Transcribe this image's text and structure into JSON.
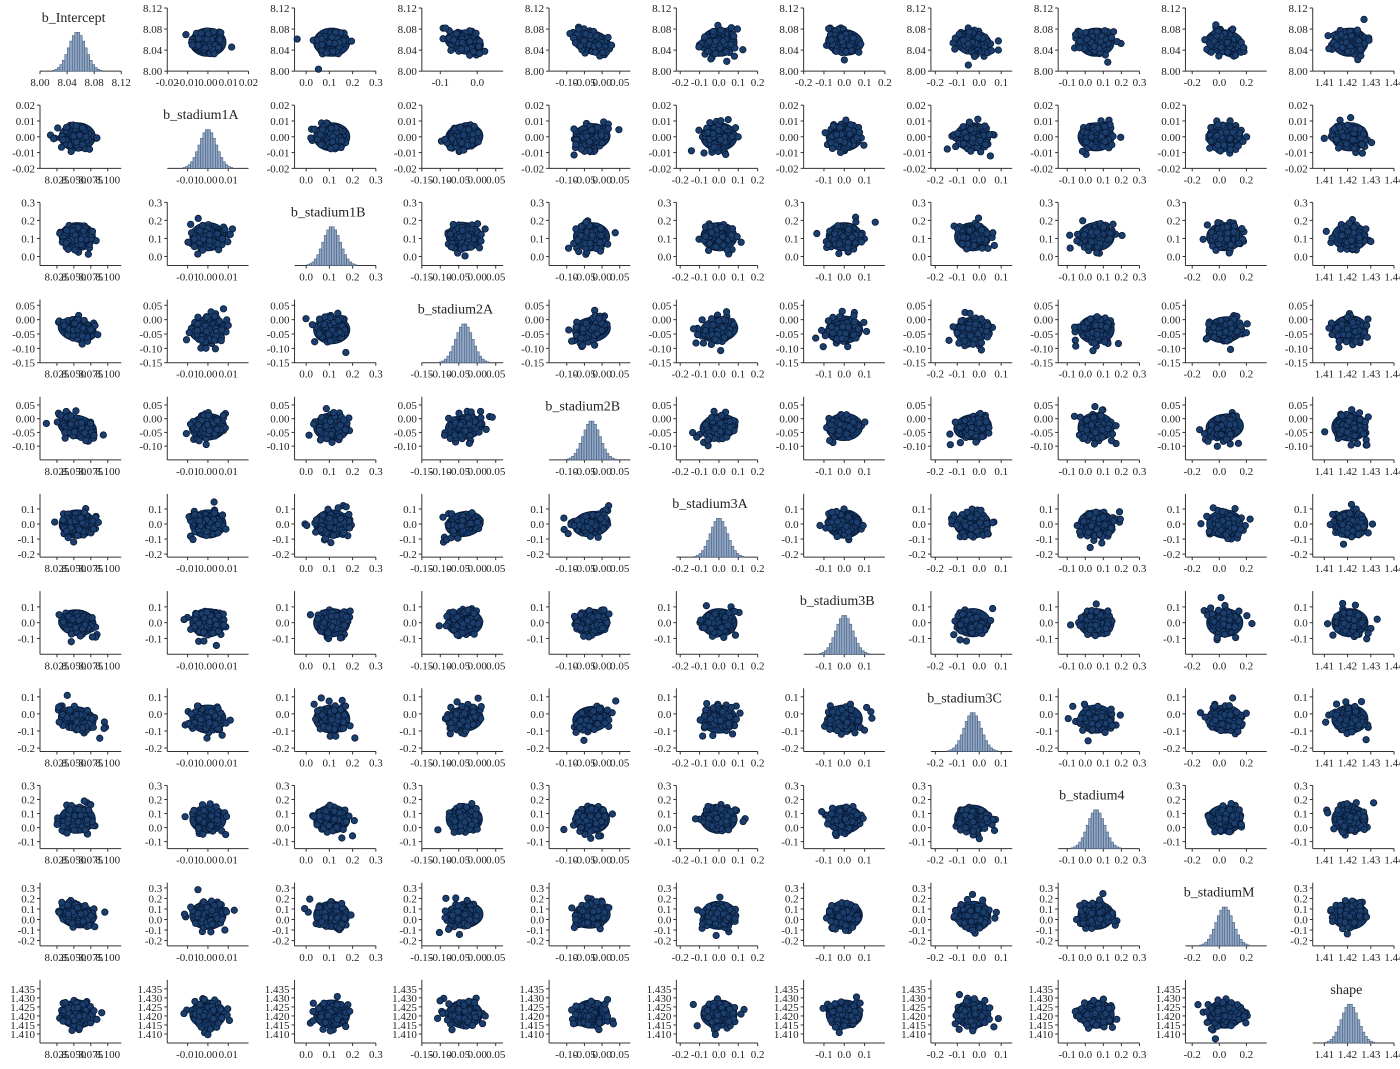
{
  "chart_data": {
    "type": "scatter",
    "title": "",
    "layout": "pairs-matrix",
    "grid": false,
    "legend": "none",
    "colors": {
      "points": "#143866",
      "point_edge": "#0a1f3f",
      "histogram": "#8fa6c4",
      "title": "#0b2450"
    },
    "variables": [
      {
        "name": "b_Intercept",
        "range": [
          8.0,
          8.12
        ],
        "center": 8.055,
        "x_ticks": [
          "8.00",
          "8.04",
          "8.08",
          "8.12"
        ],
        "x_ticks_alt": [
          "8.025",
          "8.050",
          "8.075",
          "8.100"
        ],
        "y_ticks": [
          "8.12",
          "8.08",
          "8.04",
          "8.00"
        ]
      },
      {
        "name": "b_stadium1A",
        "range": [
          -0.02,
          0.02
        ],
        "center": 0.0,
        "x_ticks": [
          "-0.02",
          "-0.01",
          "0.00",
          "0.01",
          "0.02"
        ],
        "x_ticks_alt": [
          "-0.01",
          "0.00",
          "0.01"
        ],
        "y_ticks": [
          "0.02",
          "0.01",
          "0.00",
          "-0.01",
          "-0.02"
        ]
      },
      {
        "name": "b_stadium1B",
        "range": [
          -0.05,
          0.3
        ],
        "center": 0.11,
        "x_ticks": [
          "0.0",
          "0.1",
          "0.2",
          "0.3"
        ],
        "y_ticks": [
          "0.3",
          "0.2",
          "0.1",
          "0.0"
        ]
      },
      {
        "name": "b_stadium2A",
        "range": [
          -0.15,
          0.07
        ],
        "center": -0.035,
        "x_ticks": [
          "-0.1",
          "0.0"
        ],
        "x_ticks_alt": [
          "-0.15",
          "-0.10",
          "-0.05",
          "0.00",
          "0.05"
        ],
        "y_ticks": [
          "0.05",
          "0.00",
          "-0.05",
          "-0.10",
          "-0.15"
        ]
      },
      {
        "name": "b_stadium2B",
        "range": [
          -0.15,
          0.08
        ],
        "center": -0.03,
        "x_ticks": [
          "-0.10",
          "-0.05",
          "0.00",
          "0.05",
          "0.10"
        ],
        "x_ticks_alt": [
          "-0.10",
          "-0.05",
          "0.00",
          "0.05"
        ],
        "y_ticks": [
          "0.05",
          "0.00",
          "-0.05",
          "-0.10"
        ]
      },
      {
        "name": "b_stadium3A",
        "range": [
          -0.22,
          0.2
        ],
        "center": 0.0,
        "x_ticks": [
          "-0.2",
          "-0.1",
          "0.0",
          "0.1",
          "0.2"
        ],
        "y_ticks": [
          "0.1",
          "0.0",
          "-0.1",
          "-0.2"
        ]
      },
      {
        "name": "b_stadium3B",
        "range": [
          -0.2,
          0.2
        ],
        "center": 0.0,
        "x_ticks": [
          "-0.2",
          "-0.1",
          "0.0",
          "0.1",
          "0.2"
        ],
        "x_ticks_alt": [
          "-0.1",
          "0.0",
          "0.1"
        ],
        "y_ticks": [
          "0.1",
          "0.0",
          "-0.1"
        ]
      },
      {
        "name": "b_stadium3C",
        "range": [
          -0.22,
          0.15
        ],
        "center": -0.03,
        "x_ticks": [
          "-0.2",
          "-0.1",
          "0.0",
          "0.1"
        ],
        "y_ticks": [
          "0.1",
          "0.0",
          "-0.1",
          "-0.2"
        ]
      },
      {
        "name": "b_stadium4",
        "range": [
          -0.15,
          0.3
        ],
        "center": 0.06,
        "x_ticks": [
          "-0.1",
          "0.0",
          "0.1",
          "0.2",
          "0.3"
        ],
        "y_ticks": [
          "0.3",
          "0.2",
          "0.1",
          "0.0",
          "-0.1"
        ]
      },
      {
        "name": "b_stadiumM",
        "range": [
          -0.25,
          0.35
        ],
        "center": 0.04,
        "x_ticks": [
          "-0.2",
          "0.0",
          "0.2"
        ],
        "y_ticks": [
          "0.3",
          "0.2",
          "0.1",
          "0.0",
          "-0.1",
          "-0.2"
        ]
      },
      {
        "name": "shape",
        "range": [
          1.405,
          1.44
        ],
        "center": 1.421,
        "x_ticks": [
          "1.41",
          "1.42",
          "1.43",
          "1.44"
        ],
        "y_ticks": [
          "1.435",
          "1.430",
          "1.425",
          "1.420",
          "1.415",
          "1.410"
        ]
      }
    ],
    "correlations": [
      [
        1,
        0,
        0,
        -0.5,
        -0.5,
        0,
        -0.25,
        -0.35,
        0,
        -0.35,
        0
      ],
      [
        0,
        1,
        0,
        0.2,
        0.2,
        0,
        0,
        0,
        0,
        0,
        0
      ],
      [
        0,
        0,
        1,
        0,
        0,
        0,
        0,
        0,
        0,
        0,
        0
      ],
      [
        -0.5,
        0.2,
        0,
        1,
        0.35,
        0.35,
        0.1,
        0.3,
        0,
        0.25,
        0
      ],
      [
        -0.5,
        0.2,
        0,
        0.35,
        1,
        0.35,
        0.1,
        0.3,
        0,
        0.25,
        0
      ],
      [
        0,
        0,
        0,
        0.35,
        0.35,
        1,
        0,
        0,
        0,
        0,
        0
      ],
      [
        -0.25,
        0,
        0,
        0.1,
        0.1,
        0,
        1,
        0,
        0,
        0,
        0
      ],
      [
        -0.35,
        0,
        0,
        0.3,
        0.3,
        0,
        0,
        1,
        0,
        0,
        0
      ],
      [
        0,
        0,
        0,
        0,
        0,
        0,
        0,
        0,
        1,
        0,
        0
      ],
      [
        -0.35,
        0,
        0,
        0.25,
        0.25,
        0,
        0,
        0,
        0,
        1,
        0
      ],
      [
        0,
        0,
        0,
        0,
        0,
        0,
        0,
        0,
        0,
        0,
        1
      ]
    ]
  }
}
